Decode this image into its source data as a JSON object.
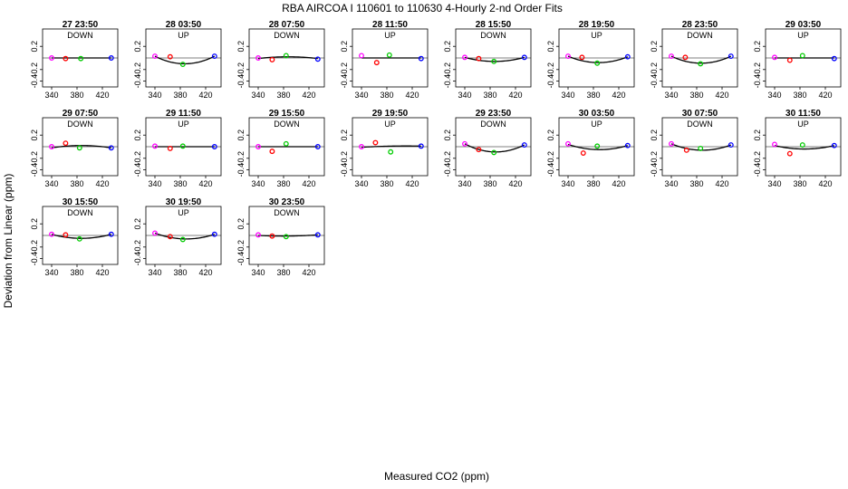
{
  "page": {
    "title": "RBA   AIRCOA I   110601 to 110630   4-Hourly 2-nd Order Fits",
    "xlabel": "Measured CO2 (ppm)",
    "ylabel": "Deviation from Linear (ppm)"
  },
  "colors": {
    "magenta": "#ff00ff",
    "red": "#ff0000",
    "green": "#00cc00",
    "blue": "#0000ff",
    "curve": "#000000"
  },
  "chart_data": [
    {
      "type": "scatter",
      "title": "27 23:50",
      "direction": "DOWN",
      "xlim": [
        330,
        440
      ],
      "ylim": [
        -0.5,
        0.5
      ],
      "xticks": [
        340,
        380,
        420
      ],
      "yticks": [
        0.2,
        -0.2,
        -0.4
      ],
      "points": [
        {
          "x": 340,
          "y": 0.0,
          "series": "magenta"
        },
        {
          "x": 362,
          "y": -0.01,
          "series": "red"
        },
        {
          "x": 386,
          "y": -0.01,
          "series": "green"
        },
        {
          "x": 434,
          "y": 0.0,
          "series": "blue"
        }
      ],
      "fit": [
        0.0,
        0.0,
        0.0
      ]
    },
    {
      "type": "scatter",
      "title": "28 03:50",
      "direction": "UP",
      "xlim": [
        330,
        440
      ],
      "ylim": [
        -0.5,
        0.5
      ],
      "xticks": [
        340,
        380,
        420
      ],
      "yticks": [
        0.2,
        -0.2,
        -0.4
      ],
      "points": [
        {
          "x": 340,
          "y": 0.03,
          "series": "magenta"
        },
        {
          "x": 364,
          "y": 0.02,
          "series": "red"
        },
        {
          "x": 384,
          "y": -0.11,
          "series": "green"
        },
        {
          "x": 434,
          "y": 0.03,
          "series": "blue"
        }
      ],
      "fit": [
        0.03,
        -0.1,
        0.03
      ]
    },
    {
      "type": "scatter",
      "title": "28 07:50",
      "direction": "DOWN",
      "xlim": [
        330,
        440
      ],
      "ylim": [
        -0.5,
        0.5
      ],
      "xticks": [
        340,
        380,
        420
      ],
      "yticks": [
        0.2,
        -0.2,
        -0.4
      ],
      "points": [
        {
          "x": 340,
          "y": 0.0,
          "series": "magenta"
        },
        {
          "x": 362,
          "y": -0.03,
          "series": "red"
        },
        {
          "x": 384,
          "y": 0.04,
          "series": "green"
        },
        {
          "x": 434,
          "y": -0.02,
          "series": "blue"
        }
      ],
      "fit": [
        -0.01,
        0.02,
        -0.01
      ]
    },
    {
      "type": "scatter",
      "title": "28 11:50",
      "direction": "UP",
      "xlim": [
        330,
        440
      ],
      "ylim": [
        -0.5,
        0.5
      ],
      "xticks": [
        340,
        380,
        420
      ],
      "yticks": [
        0.2,
        -0.2,
        -0.4
      ],
      "points": [
        {
          "x": 340,
          "y": 0.04,
          "series": "magenta"
        },
        {
          "x": 364,
          "y": -0.08,
          "series": "red"
        },
        {
          "x": 384,
          "y": 0.05,
          "series": "green"
        },
        {
          "x": 434,
          "y": -0.01,
          "series": "blue"
        }
      ],
      "fit": [
        0.0,
        0.0,
        0.0
      ]
    },
    {
      "type": "scatter",
      "title": "28 15:50",
      "direction": "DOWN",
      "xlim": [
        330,
        440
      ],
      "ylim": [
        -0.5,
        0.5
      ],
      "xticks": [
        340,
        380,
        420
      ],
      "yticks": [
        0.2,
        -0.2,
        -0.4
      ],
      "points": [
        {
          "x": 340,
          "y": 0.01,
          "series": "magenta"
        },
        {
          "x": 362,
          "y": -0.01,
          "series": "red"
        },
        {
          "x": 386,
          "y": -0.06,
          "series": "green"
        },
        {
          "x": 434,
          "y": 0.01,
          "series": "blue"
        }
      ],
      "fit": [
        0.01,
        -0.06,
        0.01
      ]
    },
    {
      "type": "scatter",
      "title": "28 19:50",
      "direction": "UP",
      "xlim": [
        330,
        440
      ],
      "ylim": [
        -0.5,
        0.5
      ],
      "xticks": [
        340,
        380,
        420
      ],
      "yticks": [
        0.2,
        -0.2,
        -0.4
      ],
      "points": [
        {
          "x": 340,
          "y": 0.03,
          "series": "magenta"
        },
        {
          "x": 362,
          "y": 0.01,
          "series": "red"
        },
        {
          "x": 386,
          "y": -0.09,
          "series": "green"
        },
        {
          "x": 434,
          "y": 0.02,
          "series": "blue"
        }
      ],
      "fit": [
        0.03,
        -0.08,
        0.02
      ]
    },
    {
      "type": "scatter",
      "title": "28 23:50",
      "direction": "DOWN",
      "xlim": [
        330,
        440
      ],
      "ylim": [
        -0.5,
        0.5
      ],
      "xticks": [
        340,
        380,
        420
      ],
      "yticks": [
        0.2,
        -0.2,
        -0.4
      ],
      "points": [
        {
          "x": 340,
          "y": 0.03,
          "series": "magenta"
        },
        {
          "x": 362,
          "y": 0.01,
          "series": "red"
        },
        {
          "x": 386,
          "y": -0.1,
          "series": "green"
        },
        {
          "x": 434,
          "y": 0.03,
          "series": "blue"
        }
      ],
      "fit": [
        0.03,
        -0.09,
        0.03
      ]
    },
    {
      "type": "scatter",
      "title": "29 03:50",
      "direction": "UP",
      "xlim": [
        330,
        440
      ],
      "ylim": [
        -0.5,
        0.5
      ],
      "xticks": [
        340,
        380,
        420
      ],
      "yticks": [
        0.2,
        -0.2,
        -0.4
      ],
      "points": [
        {
          "x": 340,
          "y": 0.01,
          "series": "magenta"
        },
        {
          "x": 364,
          "y": -0.04,
          "series": "red"
        },
        {
          "x": 384,
          "y": 0.04,
          "series": "green"
        },
        {
          "x": 434,
          "y": -0.01,
          "series": "blue"
        }
      ],
      "fit": [
        0.0,
        0.0,
        0.0
      ]
    },
    {
      "type": "scatter",
      "title": "29 07:50",
      "direction": "DOWN",
      "xlim": [
        330,
        440
      ],
      "ylim": [
        -0.5,
        0.5
      ],
      "xticks": [
        340,
        380,
        420
      ],
      "yticks": [
        0.2,
        -0.2,
        -0.4
      ],
      "points": [
        {
          "x": 340,
          "y": 0.0,
          "series": "magenta"
        },
        {
          "x": 362,
          "y": 0.06,
          "series": "red"
        },
        {
          "x": 384,
          "y": -0.02,
          "series": "green"
        },
        {
          "x": 434,
          "y": -0.02,
          "series": "blue"
        }
      ],
      "fit": [
        -0.02,
        0.02,
        -0.02
      ]
    },
    {
      "type": "scatter",
      "title": "29 11:50",
      "direction": "UP",
      "xlim": [
        330,
        440
      ],
      "ylim": [
        -0.5,
        0.5
      ],
      "xticks": [
        340,
        380,
        420
      ],
      "yticks": [
        0.2,
        -0.2,
        -0.4
      ],
      "points": [
        {
          "x": 340,
          "y": 0.01,
          "series": "magenta"
        },
        {
          "x": 364,
          "y": -0.03,
          "series": "red"
        },
        {
          "x": 384,
          "y": 0.01,
          "series": "green"
        },
        {
          "x": 434,
          "y": 0.0,
          "series": "blue"
        }
      ],
      "fit": [
        0.0,
        0.0,
        0.0
      ]
    },
    {
      "type": "scatter",
      "title": "29 15:50",
      "direction": "DOWN",
      "xlim": [
        330,
        440
      ],
      "ylim": [
        -0.5,
        0.5
      ],
      "xticks": [
        340,
        380,
        420
      ],
      "yticks": [
        0.2,
        -0.2,
        -0.4
      ],
      "points": [
        {
          "x": 340,
          "y": 0.0,
          "series": "magenta"
        },
        {
          "x": 362,
          "y": -0.08,
          "series": "red"
        },
        {
          "x": 384,
          "y": 0.05,
          "series": "green"
        },
        {
          "x": 434,
          "y": 0.0,
          "series": "blue"
        }
      ],
      "fit": [
        0.0,
        0.0,
        0.0
      ]
    },
    {
      "type": "scatter",
      "title": "29 19:50",
      "direction": "UP",
      "xlim": [
        330,
        440
      ],
      "ylim": [
        -0.5,
        0.5
      ],
      "xticks": [
        340,
        380,
        420
      ],
      "yticks": [
        0.2,
        -0.2,
        -0.4
      ],
      "points": [
        {
          "x": 340,
          "y": 0.0,
          "series": "magenta"
        },
        {
          "x": 362,
          "y": 0.07,
          "series": "red"
        },
        {
          "x": 386,
          "y": -0.09,
          "series": "green"
        },
        {
          "x": 434,
          "y": 0.01,
          "series": "blue"
        }
      ],
      "fit": [
        -0.01,
        0.01,
        0.01
      ]
    },
    {
      "type": "scatter",
      "title": "29 23:50",
      "direction": "DOWN",
      "xlim": [
        330,
        440
      ],
      "ylim": [
        -0.5,
        0.5
      ],
      "xticks": [
        340,
        380,
        420
      ],
      "yticks": [
        0.2,
        -0.2,
        -0.4
      ],
      "points": [
        {
          "x": 340,
          "y": 0.05,
          "series": "magenta"
        },
        {
          "x": 362,
          "y": -0.05,
          "series": "red"
        },
        {
          "x": 386,
          "y": -0.1,
          "series": "green"
        },
        {
          "x": 434,
          "y": 0.03,
          "series": "blue"
        }
      ],
      "fit": [
        0.05,
        -0.09,
        0.03
      ]
    },
    {
      "type": "scatter",
      "title": "30 03:50",
      "direction": "UP",
      "xlim": [
        330,
        440
      ],
      "ylim": [
        -0.5,
        0.5
      ],
      "xticks": [
        340,
        380,
        420
      ],
      "yticks": [
        0.2,
        -0.2,
        -0.4
      ],
      "points": [
        {
          "x": 340,
          "y": 0.05,
          "series": "magenta"
        },
        {
          "x": 364,
          "y": -0.11,
          "series": "red"
        },
        {
          "x": 386,
          "y": 0.01,
          "series": "green"
        },
        {
          "x": 434,
          "y": 0.02,
          "series": "blue"
        }
      ],
      "fit": [
        0.04,
        -0.05,
        0.02
      ]
    },
    {
      "type": "scatter",
      "title": "30 07:50",
      "direction": "DOWN",
      "xlim": [
        330,
        440
      ],
      "ylim": [
        -0.5,
        0.5
      ],
      "xticks": [
        340,
        380,
        420
      ],
      "yticks": [
        0.2,
        -0.2,
        -0.4
      ],
      "points": [
        {
          "x": 340,
          "y": 0.05,
          "series": "magenta"
        },
        {
          "x": 364,
          "y": -0.06,
          "series": "red"
        },
        {
          "x": 386,
          "y": -0.03,
          "series": "green"
        },
        {
          "x": 434,
          "y": 0.03,
          "series": "blue"
        }
      ],
      "fit": [
        0.05,
        -0.06,
        0.03
      ]
    },
    {
      "type": "scatter",
      "title": "30 11:50",
      "direction": "UP",
      "xlim": [
        330,
        440
      ],
      "ylim": [
        -0.5,
        0.5
      ],
      "xticks": [
        340,
        380,
        420
      ],
      "yticks": [
        0.2,
        -0.2,
        -0.4
      ],
      "points": [
        {
          "x": 340,
          "y": 0.04,
          "series": "magenta"
        },
        {
          "x": 364,
          "y": -0.12,
          "series": "red"
        },
        {
          "x": 384,
          "y": 0.03,
          "series": "green"
        },
        {
          "x": 434,
          "y": 0.02,
          "series": "blue"
        }
      ],
      "fit": [
        0.02,
        -0.04,
        0.02
      ]
    },
    {
      "type": "scatter",
      "title": "30 15:50",
      "direction": "DOWN",
      "xlim": [
        330,
        440
      ],
      "ylim": [
        -0.5,
        0.5
      ],
      "xticks": [
        340,
        380,
        420
      ],
      "yticks": [
        0.2,
        -0.2,
        -0.4
      ],
      "points": [
        {
          "x": 340,
          "y": 0.02,
          "series": "magenta"
        },
        {
          "x": 362,
          "y": 0.01,
          "series": "red"
        },
        {
          "x": 384,
          "y": -0.06,
          "series": "green"
        },
        {
          "x": 434,
          "y": 0.02,
          "series": "blue"
        }
      ],
      "fit": [
        0.02,
        -0.05,
        0.02
      ]
    },
    {
      "type": "scatter",
      "title": "30 19:50",
      "direction": "UP",
      "xlim": [
        330,
        440
      ],
      "ylim": [
        -0.5,
        0.5
      ],
      "xticks": [
        340,
        380,
        420
      ],
      "yticks": [
        0.2,
        -0.2,
        -0.4
      ],
      "points": [
        {
          "x": 340,
          "y": 0.04,
          "series": "magenta"
        },
        {
          "x": 364,
          "y": -0.02,
          "series": "red"
        },
        {
          "x": 384,
          "y": -0.07,
          "series": "green"
        },
        {
          "x": 434,
          "y": 0.02,
          "series": "blue"
        }
      ],
      "fit": [
        0.04,
        -0.06,
        0.02
      ]
    },
    {
      "type": "scatter",
      "title": "30 23:50",
      "direction": "DOWN",
      "xlim": [
        330,
        440
      ],
      "ylim": [
        -0.5,
        0.5
      ],
      "xticks": [
        340,
        380,
        420
      ],
      "yticks": [
        0.2,
        -0.2,
        -0.4
      ],
      "points": [
        {
          "x": 340,
          "y": 0.01,
          "series": "magenta"
        },
        {
          "x": 362,
          "y": -0.01,
          "series": "red"
        },
        {
          "x": 384,
          "y": -0.02,
          "series": "green"
        },
        {
          "x": 434,
          "y": 0.01,
          "series": "blue"
        }
      ],
      "fit": [
        0.0,
        -0.01,
        0.01
      ]
    }
  ]
}
